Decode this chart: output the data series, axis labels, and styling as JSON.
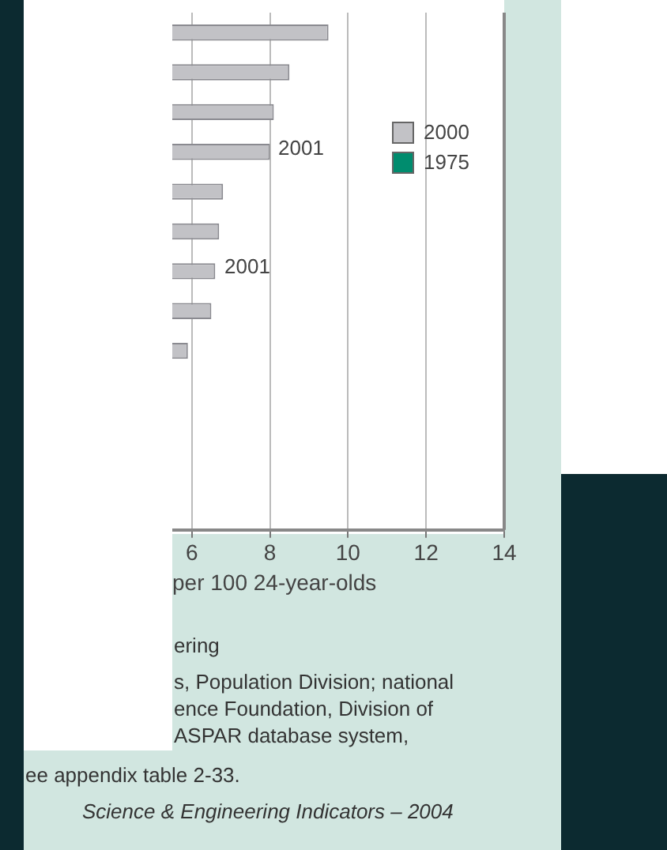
{
  "chart_data": {
    "type": "bar",
    "orientation": "horizontal",
    "xlabel": "per 100 24-year-olds",
    "categories": [
      null,
      null,
      null,
      null,
      null,
      null,
      null,
      null,
      null,
      null,
      null,
      null,
      null
    ],
    "series": [
      {
        "name": "2000",
        "color": "#c2c2c6",
        "values": [
          9.5,
          8.5,
          8.1,
          8.0,
          6.8,
          6.7,
          6.6,
          6.5,
          5.9,
          null,
          null,
          null,
          null
        ]
      },
      {
        "name": "1975",
        "color": "#008c6e",
        "values": [
          null,
          null,
          null,
          null,
          null,
          null,
          null,
          null,
          null,
          null,
          null,
          null,
          null
        ]
      }
    ],
    "xlim": [
      5.5,
      14
    ],
    "xticks": [
      6,
      8,
      10,
      12,
      14
    ],
    "grid": "x",
    "legend": "right",
    "annotations": [
      "2001",
      "2001",
      "ering",
      "s, Population Division; national\nence Foundation, Division of\nASPAR database system,\nee appendix table 2-33.",
      "Science & Engineering Indicators – 2004"
    ]
  }
}
